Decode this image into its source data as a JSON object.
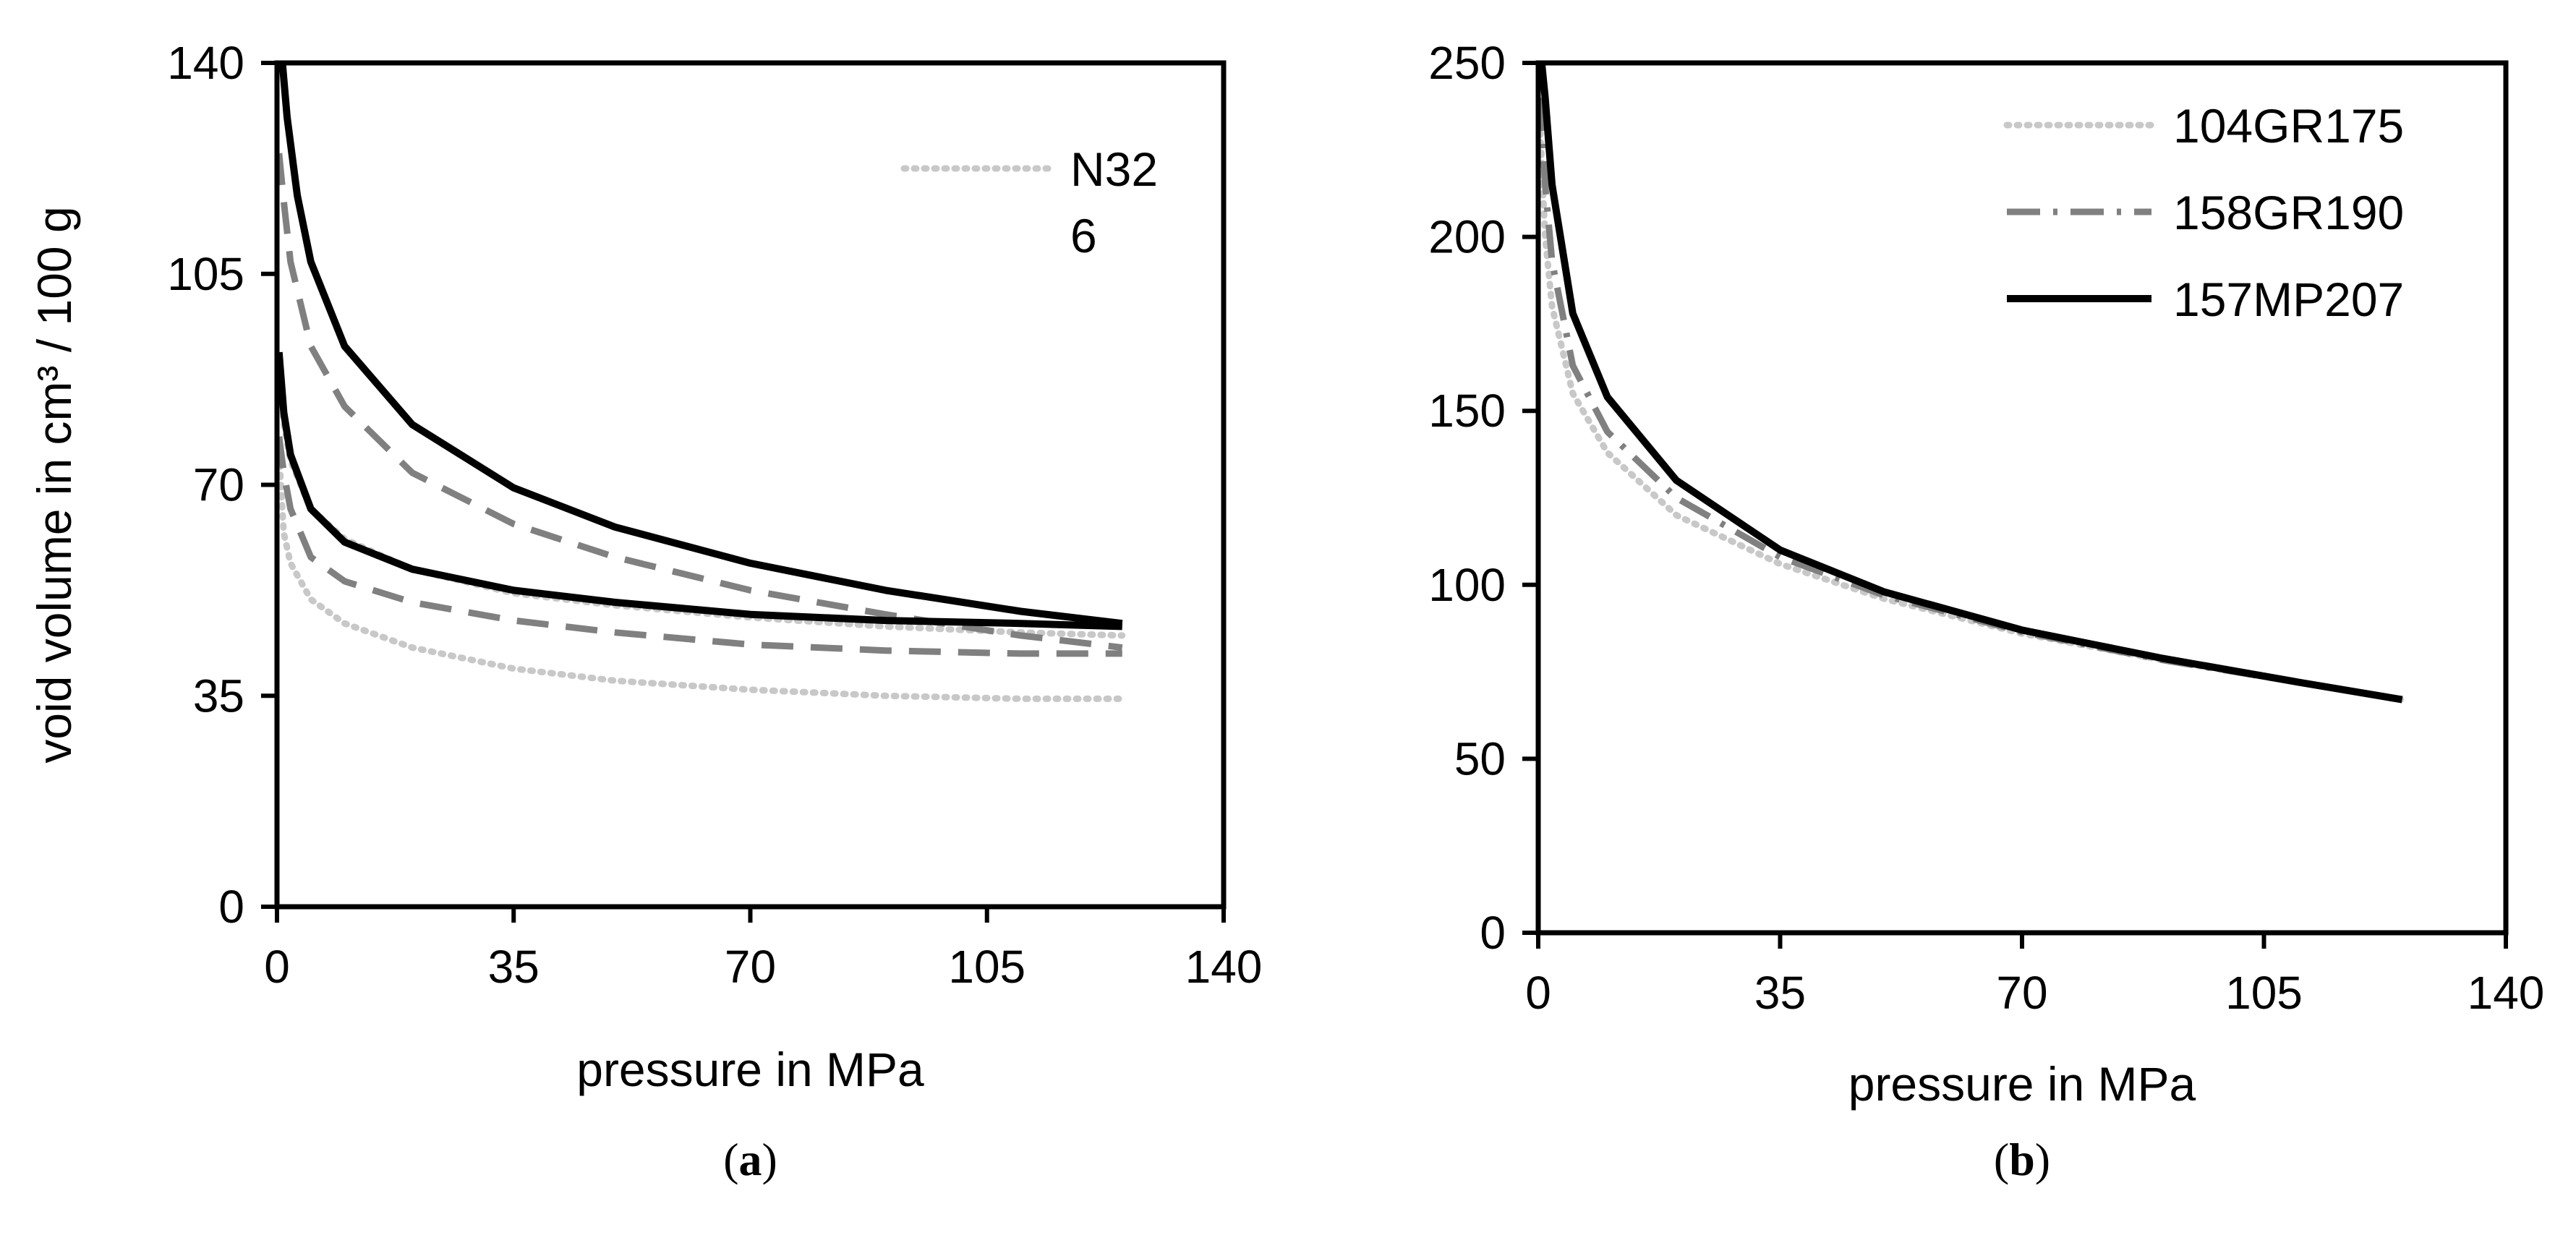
{
  "chart_data": [
    {
      "panel_label": "a",
      "type": "line",
      "xlabel": "pressure in MPa",
      "ylabel": "void volume in cm³ / 100 g",
      "xlim": [
        0,
        140
      ],
      "ylim": [
        0,
        140
      ],
      "xticks": [
        0,
        35,
        70,
        105,
        140
      ],
      "yticks": [
        0,
        35,
        70,
        105,
        140
      ],
      "xtick_labels": [
        "0",
        "35",
        "70",
        "105",
        "140"
      ],
      "ytick_labels": [
        "0",
        "35",
        "70",
        "105",
        "140"
      ],
      "grid": false,
      "legend_position": "top-right",
      "legend": [
        {
          "text": [
            "N32",
            "6"
          ],
          "style": "dotted",
          "color": "#c8c8c8"
        }
      ],
      "series": [
        {
          "style": "dotted",
          "color": "#c8c8c8",
          "x": [
            0.3,
            1,
            2,
            5,
            10,
            20,
            35,
            50,
            70,
            90,
            110,
            125
          ],
          "y": [
            75,
            62,
            57,
            51,
            47,
            43,
            39.5,
            37.5,
            36,
            35,
            34.5,
            34.5
          ]
        },
        {
          "style": "dotted",
          "color": "#c8c8c8",
          "x": [
            0.3,
            1,
            2,
            5,
            10,
            20,
            35,
            50,
            70,
            90,
            110,
            125
          ],
          "y": [
            90,
            80,
            74,
            66,
            61,
            56,
            52,
            50,
            48,
            46.5,
            45.5,
            45
          ]
        },
        {
          "style": "dashed",
          "color": "#808080",
          "x": [
            0.3,
            1,
            2,
            5,
            10,
            20,
            35,
            50,
            70,
            90,
            110,
            125
          ],
          "y": [
            78,
            72,
            66,
            58,
            54,
            50.5,
            47.5,
            45.5,
            43.5,
            42.5,
            42,
            42
          ]
        },
        {
          "style": "dashed",
          "color": "#808080",
          "x": [
            0.3,
            1,
            2,
            5,
            10,
            20,
            35,
            50,
            70,
            90,
            110,
            125
          ],
          "y": [
            125,
            117,
            107,
            93,
            83,
            72,
            63.5,
            58,
            52.5,
            48.5,
            45,
            43
          ]
        },
        {
          "style": "solid",
          "color": "#000000",
          "x": [
            0.3,
            1,
            2,
            5,
            10,
            20,
            35,
            50,
            70,
            90,
            110,
            125
          ],
          "y": [
            92,
            82,
            75,
            66,
            60.5,
            56,
            52.5,
            50.5,
            48.5,
            47.5,
            47,
            46.5
          ]
        },
        {
          "style": "solid",
          "color": "#000000",
          "x": [
            0.8,
            1.5,
            3,
            5,
            10,
            20,
            35,
            50,
            70,
            90,
            110,
            125
          ],
          "y": [
            140,
            131,
            118,
            107,
            93,
            80,
            69.5,
            63,
            57,
            52.5,
            49,
            47
          ]
        }
      ]
    },
    {
      "panel_label": "b",
      "type": "line",
      "xlabel": "pressure in MPa",
      "ylabel": "",
      "xlim": [
        0,
        140
      ],
      "ylim": [
        0,
        250
      ],
      "xticks": [
        0,
        35,
        70,
        105,
        140
      ],
      "yticks": [
        0,
        50,
        100,
        150,
        200,
        250
      ],
      "xtick_labels": [
        "0",
        "35",
        "70",
        "105",
        "140"
      ],
      "ytick_labels": [
        "0",
        "50",
        "100",
        "150",
        "200",
        "250"
      ],
      "grid": false,
      "legend_position": "top-right",
      "legend": [
        {
          "text": [
            "104GR175"
          ],
          "style": "dotted",
          "color": "#c8c8c8"
        },
        {
          "text": [
            "158GR190"
          ],
          "style": "dashdot",
          "color": "#808080"
        },
        {
          "text": [
            "157MP207"
          ],
          "style": "solid",
          "color": "#000000"
        }
      ],
      "series": [
        {
          "name": "104GR175",
          "style": "dotted",
          "color": "#c8c8c8",
          "x": [
            0.3,
            1,
            2,
            5,
            10,
            20,
            35,
            50,
            70,
            90,
            110,
            125
          ],
          "y": [
            230,
            200,
            180,
            155,
            138,
            120,
            106,
            96,
            86,
            78.5,
            72,
            67
          ]
        },
        {
          "name": "158GR190",
          "style": "dashdot",
          "color": "#808080",
          "x": [
            0.3,
            1,
            2,
            5,
            10,
            20,
            35,
            50,
            70,
            90,
            110,
            125
          ],
          "y": [
            240,
            215,
            193,
            163,
            144,
            125,
            108,
            97,
            86.5,
            78.5,
            72,
            67
          ]
        },
        {
          "name": "157MP207",
          "style": "solid",
          "color": "#000000",
          "x": [
            0.5,
            1,
            2,
            5,
            10,
            20,
            35,
            50,
            70,
            90,
            110,
            125
          ],
          "y": [
            250,
            240,
            215,
            178,
            154,
            130,
            110,
            98,
            87,
            79,
            72,
            67
          ]
        }
      ]
    }
  ]
}
